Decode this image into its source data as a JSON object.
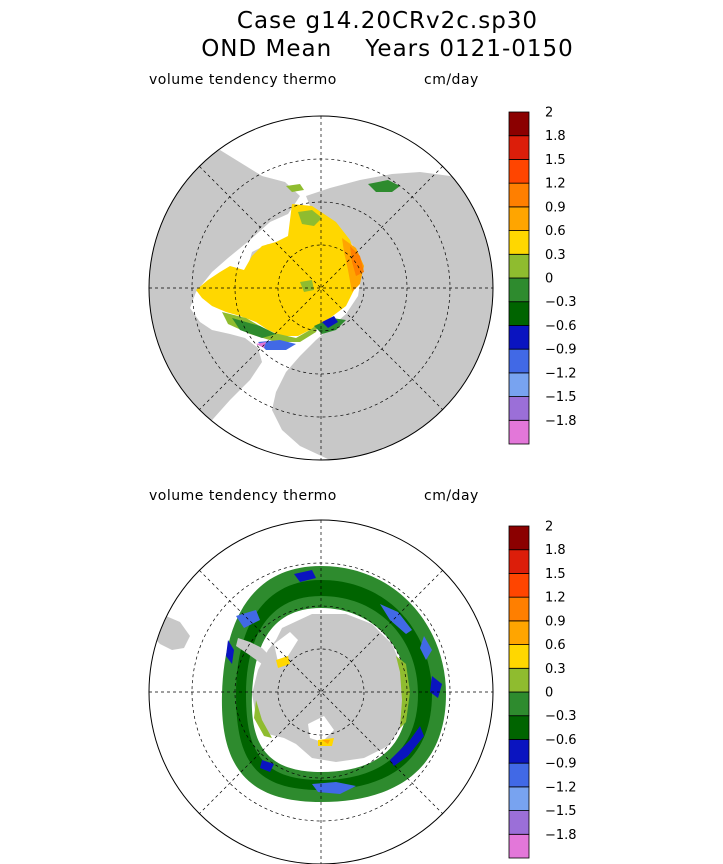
{
  "header": {
    "title_line1": "Case g14.20CRv2c.sp30",
    "title_line2": "OND Mean    Years 0121-0150"
  },
  "panels": [
    {
      "id": "north",
      "variable_label": "volume tendency thermo",
      "units_label": "cm/day"
    },
    {
      "id": "south",
      "variable_label": "volume tendency thermo",
      "units_label": "cm/day"
    }
  ],
  "colorbar": {
    "colors": [
      "#e377d9",
      "#9b6fd8",
      "#78a3f0",
      "#4169e6",
      "#0a14c0",
      "#006400",
      "#2e8b2e",
      "#8fbc2f",
      "#ffd700",
      "#ffa500",
      "#ff7f00",
      "#ff4500",
      "#dc1e0a",
      "#8b0000"
    ],
    "tick_labels": [
      "−1.8",
      "−1.5",
      "−1.2",
      "−0.9",
      "−0.6",
      "−0.3",
      "0",
      "0.3",
      "0.6",
      "0.9",
      "1.2",
      "1.5",
      "1.8",
      "2"
    ]
  },
  "map_colors": {
    "land": "#c8c8c8",
    "ocean": "#ffffff",
    "grid": "#000000"
  }
}
